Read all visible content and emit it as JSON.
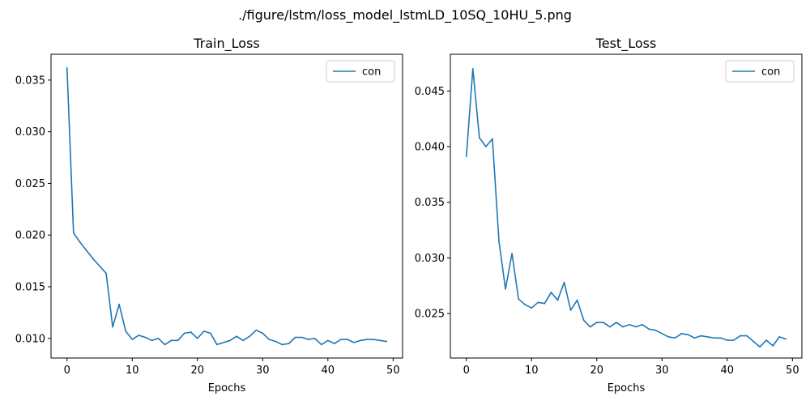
{
  "figure": {
    "suptitle": "./figure/lstm/loss_model_lstmLD_10SQ_10HU_5.png"
  },
  "chart_data": [
    {
      "type": "line",
      "title": "Train_Loss",
      "xlabel": "Epochs",
      "ylabel": "",
      "xlim": [
        -2.45,
        51.45
      ],
      "ylim": [
        0.0081,
        0.0375
      ],
      "xticks": [
        0,
        10,
        20,
        30,
        40,
        50
      ],
      "xtick_labels": [
        "0",
        "10",
        "20",
        "30",
        "40",
        "50"
      ],
      "yticks": [
        0.01,
        0.015,
        0.02,
        0.025,
        0.03,
        0.035
      ],
      "ytick_labels": [
        "0.010",
        "0.015",
        "0.020",
        "0.025",
        "0.030",
        "0.035"
      ],
      "legend_position": "top-right",
      "grid": false,
      "series": [
        {
          "name": "con",
          "color": "#1f77b4",
          "x": [
            0,
            1,
            2,
            3,
            4,
            5,
            6,
            7,
            8,
            9,
            10,
            11,
            12,
            13,
            14,
            15,
            16,
            17,
            18,
            19,
            20,
            21,
            22,
            23,
            24,
            25,
            26,
            27,
            28,
            29,
            30,
            31,
            32,
            33,
            34,
            35,
            36,
            37,
            38,
            39,
            40,
            41,
            42,
            43,
            44,
            45,
            46,
            47,
            48,
            49
          ],
          "values": [
            0.0362,
            0.0202,
            0.0193,
            0.0185,
            0.0177,
            0.017,
            0.0163,
            0.0111,
            0.0133,
            0.0107,
            0.0099,
            0.0103,
            0.0101,
            0.0098,
            0.01,
            0.0094,
            0.0098,
            0.0098,
            0.0105,
            0.0106,
            0.01,
            0.0107,
            0.0105,
            0.0094,
            0.0096,
            0.0098,
            0.0102,
            0.0098,
            0.0102,
            0.0108,
            0.0105,
            0.0099,
            0.0097,
            0.0094,
            0.0095,
            0.0101,
            0.0101,
            0.0099,
            0.01,
            0.0094,
            0.0098,
            0.0095,
            0.0099,
            0.0099,
            0.0096,
            0.0098,
            0.0099,
            0.0099,
            0.0098,
            0.0097
          ]
        }
      ]
    },
    {
      "type": "line",
      "title": "Test_Loss",
      "xlabel": "Epochs",
      "ylabel": "",
      "xlim": [
        -2.45,
        51.45
      ],
      "ylim": [
        0.021,
        0.0483
      ],
      "xticks": [
        0,
        10,
        20,
        30,
        40,
        50
      ],
      "xtick_labels": [
        "0",
        "10",
        "20",
        "30",
        "40",
        "50"
      ],
      "yticks": [
        0.025,
        0.03,
        0.035,
        0.04,
        0.045
      ],
      "ytick_labels": [
        "0.025",
        "0.030",
        "0.035",
        "0.040",
        "0.045"
      ],
      "legend_position": "top-right",
      "grid": false,
      "series": [
        {
          "name": "con",
          "color": "#1f77b4",
          "x": [
            0,
            1,
            2,
            3,
            4,
            5,
            6,
            7,
            8,
            9,
            10,
            11,
            12,
            13,
            14,
            15,
            16,
            17,
            18,
            19,
            20,
            21,
            22,
            23,
            24,
            25,
            26,
            27,
            28,
            29,
            30,
            31,
            32,
            33,
            34,
            35,
            36,
            37,
            38,
            39,
            40,
            41,
            42,
            43,
            44,
            45,
            46,
            47,
            48,
            49
          ],
          "values": [
            0.0391,
            0.047,
            0.0408,
            0.04,
            0.0407,
            0.0315,
            0.0272,
            0.0304,
            0.0263,
            0.0258,
            0.0255,
            0.026,
            0.0259,
            0.0269,
            0.0262,
            0.0278,
            0.0253,
            0.0262,
            0.0244,
            0.0238,
            0.0242,
            0.0242,
            0.0238,
            0.0242,
            0.0238,
            0.024,
            0.0238,
            0.024,
            0.0236,
            0.0235,
            0.0232,
            0.0229,
            0.0228,
            0.0232,
            0.0231,
            0.0228,
            0.023,
            0.0229,
            0.0228,
            0.0228,
            0.0226,
            0.0226,
            0.023,
            0.023,
            0.0225,
            0.022,
            0.0226,
            0.0221,
            0.0229,
            0.0227
          ]
        }
      ]
    }
  ]
}
